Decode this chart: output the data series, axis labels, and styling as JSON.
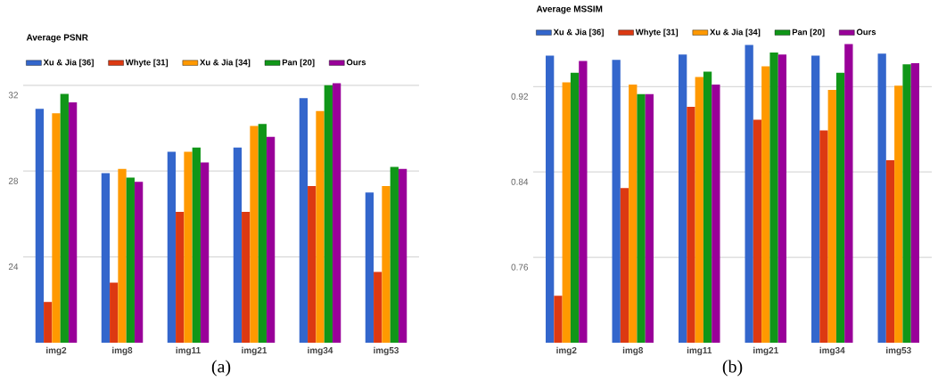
{
  "chart_data": [
    {
      "type": "bar",
      "title": "Average PSNR",
      "categories": [
        "img2",
        "img8",
        "img11",
        "img21",
        "img34",
        "img53"
      ],
      "series": [
        {
          "name": "Xu & Jia [36]",
          "color": "#3366cc",
          "values": [
            30.9,
            27.9,
            28.9,
            29.1,
            31.4,
            27.0
          ]
        },
        {
          "name": "Whyte [31]",
          "color": "#dc3912",
          "values": [
            21.9,
            22.8,
            26.1,
            26.1,
            27.3,
            23.3
          ]
        },
        {
          "name": "Xu & Jia [34]",
          "color": "#ff9900",
          "values": [
            30.7,
            28.1,
            28.9,
            30.1,
            30.8,
            27.3
          ]
        },
        {
          "name": "Pan [20]",
          "color": "#109618",
          "values": [
            31.6,
            27.7,
            29.1,
            30.2,
            32.0,
            28.2
          ]
        },
        {
          "name": "Ours",
          "color": "#990099",
          "values": [
            31.2,
            27.5,
            28.4,
            29.6,
            32.1,
            28.1
          ]
        }
      ],
      "ylim": [
        20,
        32.2
      ],
      "yticks": [
        24,
        28,
        32
      ],
      "grid": "y",
      "legend": "top",
      "annotations": [
        "(a)"
      ]
    },
    {
      "type": "bar",
      "title": "Average MSSIM",
      "categories": [
        "img2",
        "img8",
        "img11",
        "img21",
        "img34",
        "img53"
      ],
      "series": [
        {
          "name": "Xu & Jia [36]",
          "color": "#3366cc",
          "values": [
            0.949,
            0.945,
            0.95,
            0.959,
            0.949,
            0.951
          ]
        },
        {
          "name": "Whyte [31]",
          "color": "#dc3912",
          "values": [
            0.724,
            0.825,
            0.901,
            0.889,
            0.879,
            0.851
          ]
        },
        {
          "name": "Xu & Jia [34]",
          "color": "#ff9900",
          "values": [
            0.924,
            0.922,
            0.929,
            0.939,
            0.917,
            0.921
          ]
        },
        {
          "name": "Pan [20]",
          "color": "#109618",
          "values": [
            0.933,
            0.913,
            0.934,
            0.952,
            0.933,
            0.941
          ]
        },
        {
          "name": "Ours",
          "color": "#990099",
          "values": [
            0.944,
            0.913,
            0.922,
            0.95,
            0.96,
            0.942
          ]
        }
      ],
      "ylim": [
        0.68,
        0.962
      ],
      "yticks": [
        0.76,
        0.84,
        0.92
      ],
      "grid": "y",
      "legend": "top",
      "annotations": [
        "(b)"
      ]
    }
  ]
}
